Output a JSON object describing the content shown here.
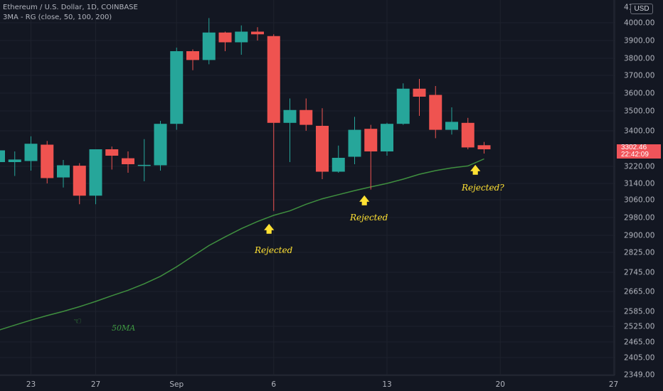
{
  "header": {
    "symbol_line": "Ethereum / U.S. Dollar, 1D, COINBASE",
    "indicator_line": "3MA - RG (close, 50, 100, 200)"
  },
  "currency_button": "USD",
  "price_badge": {
    "price": "3302.46",
    "countdown": "22:42:09"
  },
  "colors": {
    "up": "#26a69a",
    "down": "#ef5350",
    "ma": "#3f8f3f",
    "annotation": "#ffe133",
    "background": "#131722",
    "axis_text": "#b2b5be"
  },
  "annotations": [
    {
      "text": "Rejected",
      "icon": "up-arrow-icon"
    },
    {
      "text": "Rejected",
      "icon": "up-arrow-icon"
    },
    {
      "text": "Rejected?",
      "icon": "up-arrow-icon"
    }
  ],
  "ma_label": {
    "text": "50MA",
    "icon": "pointing-hand-icon"
  },
  "chart_data": {
    "type": "candlestick",
    "title": "Ethereum / U.S. Dollar, 1D, COINBASE",
    "ylim": [
      2349,
      4100
    ],
    "y_ticks": [
      "4000.00",
      "3900.00",
      "3800.00",
      "3700.00",
      "3600.00",
      "3500.00",
      "3400.00",
      "3220.00",
      "3140.00",
      "3060.00",
      "2980.00",
      "2900.00",
      "2825.00",
      "2745.00",
      "2665.00",
      "2585.00",
      "2525.00",
      "2465.00",
      "2405.00",
      "2349.00"
    ],
    "top_tick_partial": "41",
    "x_ticks": [
      "23",
      "27",
      "Sep",
      "6",
      "13",
      "20",
      "27"
    ],
    "candles": [
      {
        "o": 3240,
        "h": 3300,
        "l": 3190,
        "c": 3295
      },
      {
        "o": 3240,
        "h": 3290,
        "l": 3175,
        "c": 3252
      },
      {
        "o": 3245,
        "h": 3370,
        "l": 3200,
        "c": 3330
      },
      {
        "o": 3325,
        "h": 3345,
        "l": 3140,
        "c": 3165
      },
      {
        "o": 3168,
        "h": 3250,
        "l": 3120,
        "c": 3225
      },
      {
        "o": 3223,
        "h": 3235,
        "l": 3040,
        "c": 3080
      },
      {
        "o": 3080,
        "h": 3300,
        "l": 3040,
        "c": 3300
      },
      {
        "o": 3300,
        "h": 3315,
        "l": 3205,
        "c": 3270
      },
      {
        "o": 3258,
        "h": 3290,
        "l": 3190,
        "c": 3230
      },
      {
        "o": 3225,
        "h": 3355,
        "l": 3150,
        "c": 3227
      },
      {
        "o": 3225,
        "h": 3450,
        "l": 3200,
        "c": 3435
      },
      {
        "o": 3435,
        "h": 3860,
        "l": 3405,
        "c": 3840
      },
      {
        "o": 3840,
        "h": 3850,
        "l": 3730,
        "c": 3790
      },
      {
        "o": 3790,
        "h": 4030,
        "l": 3765,
        "c": 3945
      },
      {
        "o": 3945,
        "h": 3950,
        "l": 3840,
        "c": 3890
      },
      {
        "o": 3890,
        "h": 3985,
        "l": 3820,
        "c": 3950
      },
      {
        "o": 3950,
        "h": 3975,
        "l": 3900,
        "c": 3935
      },
      {
        "o": 3925,
        "h": 3935,
        "l": 3010,
        "c": 3440
      },
      {
        "o": 3440,
        "h": 3570,
        "l": 3240,
        "c": 3505
      },
      {
        "o": 3505,
        "h": 3570,
        "l": 3400,
        "c": 3430
      },
      {
        "o": 3425,
        "h": 3515,
        "l": 3160,
        "c": 3195
      },
      {
        "o": 3195,
        "h": 3320,
        "l": 3190,
        "c": 3260
      },
      {
        "o": 3265,
        "h": 3470,
        "l": 3230,
        "c": 3405
      },
      {
        "o": 3410,
        "h": 3430,
        "l": 3110,
        "c": 3290
      },
      {
        "o": 3290,
        "h": 3440,
        "l": 3270,
        "c": 3435
      },
      {
        "o": 3435,
        "h": 3655,
        "l": 3430,
        "c": 3625
      },
      {
        "o": 3625,
        "h": 3680,
        "l": 3475,
        "c": 3580
      },
      {
        "o": 3590,
        "h": 3640,
        "l": 3360,
        "c": 3405
      },
      {
        "o": 3405,
        "h": 3520,
        "l": 3380,
        "c": 3445
      },
      {
        "o": 3440,
        "h": 3465,
        "l": 3300,
        "c": 3310
      },
      {
        "o": 3322,
        "h": 3340,
        "l": 3280,
        "c": 3300
      }
    ],
    "ma50": {
      "name": "50MA",
      "values": [
        2510,
        2530,
        2550,
        2568,
        2585,
        2604,
        2625,
        2648,
        2670,
        2697,
        2728,
        2767,
        2810,
        2855,
        2893,
        2930,
        2962,
        2990,
        3010,
        3040,
        3065,
        3085,
        3105,
        3123,
        3140,
        3160,
        3183,
        3200,
        3213,
        3222,
        3255
      ]
    }
  }
}
